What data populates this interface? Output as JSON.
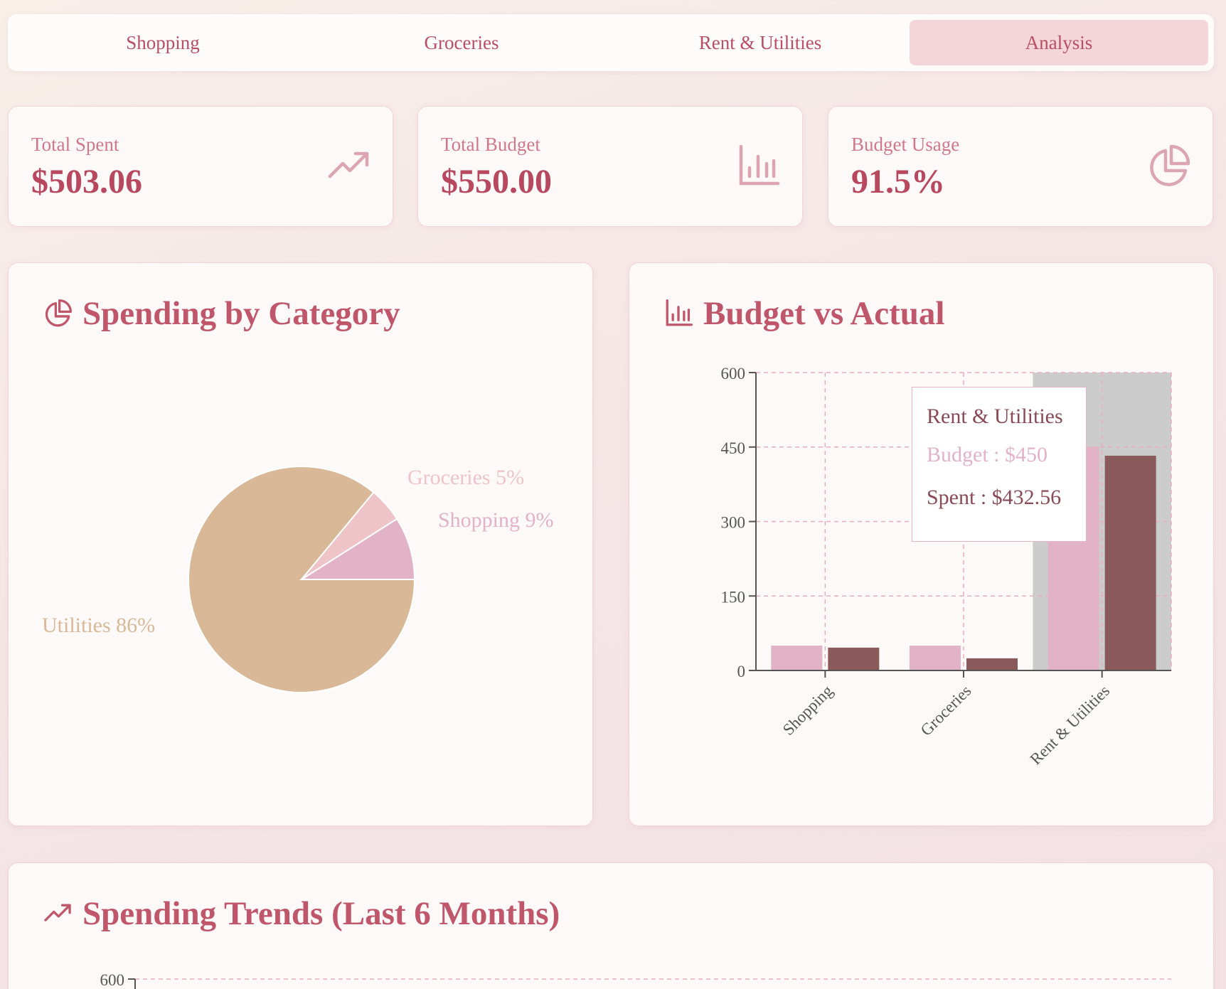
{
  "tabs": [
    {
      "label": "Shopping",
      "active": false
    },
    {
      "label": "Groceries",
      "active": false
    },
    {
      "label": "Rent & Utilities",
      "active": false
    },
    {
      "label": "Analysis",
      "active": true
    }
  ],
  "stats": [
    {
      "label": "Total Spent",
      "value": "$503.06",
      "icon": "trending-up-icon"
    },
    {
      "label": "Total Budget",
      "value": "$550.00",
      "icon": "bar-chart-icon"
    },
    {
      "label": "Budget Usage",
      "value": "91.5%",
      "icon": "pie-chart-icon"
    }
  ],
  "panels": {
    "pie_title": "Spending by Category",
    "bar_title": "Budget vs Actual",
    "trend_title": "Spending Trends (Last 6 Months)"
  },
  "tooltip": {
    "title": "Rent & Utilities",
    "budget": "Budget : $450",
    "spent": "Spent : $432.56"
  },
  "colors": {
    "accent": "#c0566a",
    "budget_bar": "#e2b2c7",
    "spent_bar": "#8a5a5b",
    "pie_rent": "#d8b896",
    "pie_groceries": "#efc4c8",
    "pie_shopping": "#e2b2c7"
  },
  "chart_data": [
    {
      "type": "pie",
      "title": "Spending by Category",
      "slices": [
        {
          "label": "Rent & Utilities",
          "value": 86,
          "display": "Utilities 86%",
          "color": "#d8b896"
        },
        {
          "label": "Groceries",
          "value": 5,
          "display": "Groceries 5%",
          "color": "#efc4c8"
        },
        {
          "label": "Shopping",
          "value": 9,
          "display": "Shopping 9%",
          "color": "#e2b2c7"
        }
      ]
    },
    {
      "type": "bar",
      "title": "Budget vs Actual",
      "categories": [
        "Shopping",
        "Groceries",
        "Rent & Utilities"
      ],
      "series": [
        {
          "values": [
            50,
            50,
            450
          ],
          "color": "#e2b2c7"
        },
        {
          "values": [
            46,
            24.5,
            432.56
          ],
          "color": "#8a5a5b"
        }
      ],
      "yticks": [
        0,
        150,
        300,
        450,
        600
      ],
      "ylim": [
        0,
        600
      ],
      "grid": true,
      "highlighted": "Rent & Utilities"
    },
    {
      "type": "line",
      "title": "Spending Trends (Last 6 Months)",
      "yticks": [
        600
      ],
      "ylim": [
        0,
        600
      ]
    }
  ]
}
